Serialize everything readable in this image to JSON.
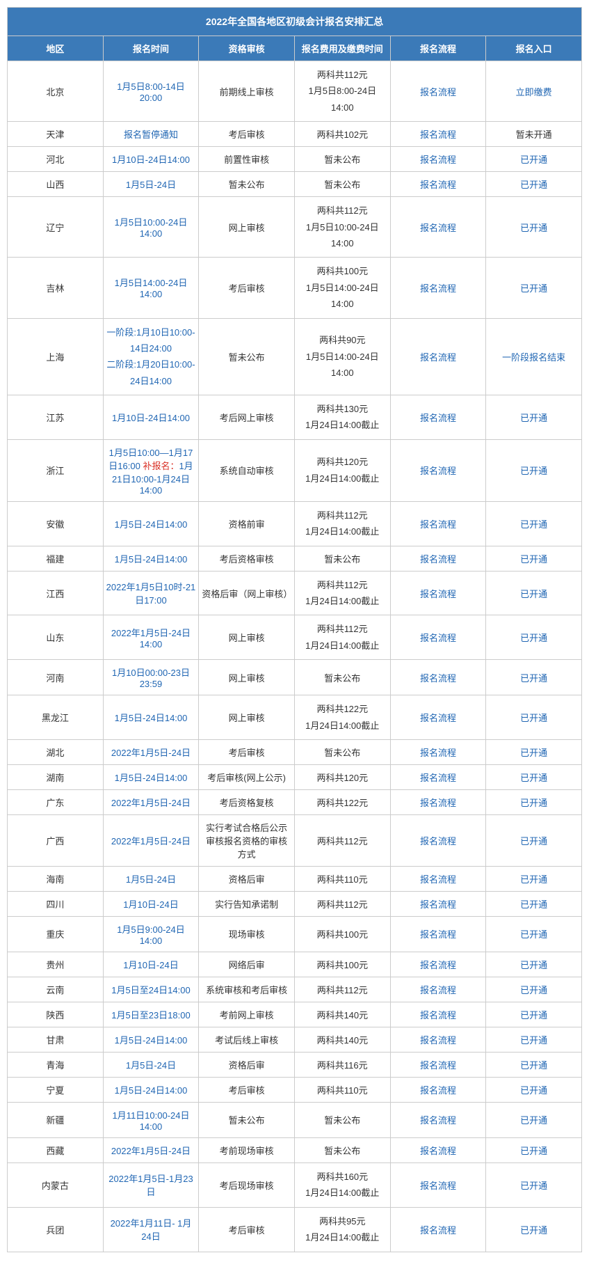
{
  "table": {
    "title": "2022年全国各地区初级会计报名安排汇总",
    "columns": [
      "地区",
      "报名时间",
      "资格审核",
      "报名费用及缴费时间",
      "报名流程",
      "报名入口"
    ],
    "process_label": "报名流程",
    "colors": {
      "header_bg": "#3b7ab8",
      "header_text": "#ffffff",
      "link": "#2066b3",
      "normal": "#333333",
      "red": "#d93025",
      "border": "#cccccc"
    },
    "rows": [
      {
        "region": "北京",
        "time": "1月5日8:00-14日20:00",
        "time_link": true,
        "audit": "前期线上审核",
        "fee_l1": "两科共112元",
        "fee_l2": "1月5日8:00-24日14:00",
        "entrance": "立即缴费",
        "entrance_link": true
      },
      {
        "region": "天津",
        "time": "报名暂停通知",
        "time_link": true,
        "audit": "考后审核",
        "fee_l1": "两科共102元",
        "fee_l2": "",
        "entrance": "暂未开通",
        "entrance_link": false
      },
      {
        "region": "河北",
        "time": "1月10日-24日14:00",
        "time_link": true,
        "audit": "前置性审核",
        "fee_l1": "暂未公布",
        "fee_l2": "",
        "entrance": "已开通",
        "entrance_link": true
      },
      {
        "region": "山西",
        "time": "1月5日-24日",
        "time_link": true,
        "audit": "暂未公布",
        "fee_l1": "暂未公布",
        "fee_l2": "",
        "entrance": "已开通",
        "entrance_link": true
      },
      {
        "region": "辽宁",
        "time": "1月5日10:00-24日14:00",
        "time_link": true,
        "audit": "网上审核",
        "fee_l1": "两科共112元",
        "fee_l2": "1月5日10:00-24日14:00",
        "entrance": "已开通",
        "entrance_link": true
      },
      {
        "region": "吉林",
        "time": "1月5日14:00-24日14:00",
        "time_link": true,
        "audit": "考后审核",
        "fee_l1": "两科共100元",
        "fee_l2": "1月5日14:00-24日14:00",
        "entrance": "已开通",
        "entrance_link": true
      },
      {
        "region": "上海",
        "time_prefix1": "一阶段:1月10日10:00-14日24:00",
        "time_prefix2": "二阶段:1月20日10:00-24日14:00",
        "time_link": true,
        "audit": "暂未公布",
        "fee_l1": "两科共90元",
        "fee_l2": "1月5日14:00-24日14:00",
        "entrance": "一阶段报名结束",
        "entrance_link": true,
        "multiline_time": true
      },
      {
        "region": "江苏",
        "time": "1月10日-24日14:00",
        "time_link": true,
        "audit": "考后网上审核",
        "fee_l1": "两科共130元",
        "fee_l2": "1月24日14:00截止",
        "entrance": "已开通",
        "entrance_link": true
      },
      {
        "region": "浙江",
        "time_prefix1": "1月5日10:00—1月17日16:00 ",
        "time_red": "补报名：",
        "time_suffix": "1月21日10:00-1月24日 14:00",
        "time_link": true,
        "audit": "系统自动审核",
        "fee_l1": "两科共120元",
        "fee_l2": "1月24日14:00截止",
        "entrance": "已开通",
        "entrance_link": true,
        "zhejiang_special": true
      },
      {
        "region": "安徽",
        "time": "1月5日-24日14:00",
        "time_link": true,
        "audit": "资格前审",
        "fee_l1": "两科共112元",
        "fee_l2": "1月24日14:00截止",
        "entrance": "已开通",
        "entrance_link": true
      },
      {
        "region": "福建",
        "time": "1月5日-24日14:00",
        "time_link": true,
        "audit": "考后资格审核",
        "fee_l1": "暂未公布",
        "fee_l2": "",
        "entrance": "已开通",
        "entrance_link": true
      },
      {
        "region": "江西",
        "time": "2022年1月5日10时-21日17:00",
        "time_link": true,
        "audit": "资格后审（网上审核）",
        "fee_l1": "两科共112元",
        "fee_l2": "1月24日14:00截止",
        "entrance": "已开通",
        "entrance_link": true
      },
      {
        "region": "山东",
        "time": "2022年1月5日-24日14:00",
        "time_link": true,
        "audit": "网上审核",
        "fee_l1": "两科共112元",
        "fee_l2": "1月24日14:00截止",
        "entrance": "已开通",
        "entrance_link": true
      },
      {
        "region": "河南",
        "time": "1月10日00:00-23日23:59",
        "time_link": true,
        "audit": "网上审核",
        "fee_l1": "暂未公布",
        "fee_l2": "",
        "entrance": "已开通",
        "entrance_link": true
      },
      {
        "region": "黑龙江",
        "time": "1月5日-24日14:00",
        "time_link": true,
        "audit": "网上审核",
        "fee_l1": "两科共122元",
        "fee_l2": "1月24日14:00截止",
        "entrance": "已开通",
        "entrance_link": true
      },
      {
        "region": "湖北",
        "time": "2022年1月5日-24日",
        "time_link": true,
        "audit": "考后审核",
        "fee_l1": "暂未公布",
        "fee_l2": "",
        "entrance": "已开通",
        "entrance_link": true
      },
      {
        "region": "湖南",
        "time": "1月5日-24日14:00",
        "time_link": true,
        "audit": "考后审核(网上公示)",
        "fee_l1": "两科共120元",
        "fee_l2": "",
        "entrance": "已开通",
        "entrance_link": true
      },
      {
        "region": "广东",
        "time": "2022年1月5日-24日",
        "time_link": true,
        "audit": "考后资格复核",
        "fee_l1": "两科共122元",
        "fee_l2": "",
        "entrance": "已开通",
        "entrance_link": true
      },
      {
        "region": "广西",
        "time": "2022年1月5日-24日",
        "time_link": true,
        "audit": "实行考试合格后公示审核报名资格的审核方式",
        "fee_l1": "两科共112元",
        "fee_l2": "",
        "entrance": "已开通",
        "entrance_link": true
      },
      {
        "region": "海南",
        "time": "1月5日-24日",
        "time_link": true,
        "audit": "资格后审",
        "fee_l1": "两科共110元",
        "fee_l2": "",
        "entrance": "已开通",
        "entrance_link": true
      },
      {
        "region": "四川",
        "time": "1月10日-24日",
        "time_link": true,
        "audit": "实行告知承诺制",
        "fee_l1": "两科共112元",
        "fee_l2": "",
        "entrance": "已开通",
        "entrance_link": true
      },
      {
        "region": "重庆",
        "time": "1月5日9:00-24日14:00",
        "time_link": true,
        "audit": "现场审核",
        "fee_l1": "两科共100元",
        "fee_l2": "",
        "entrance": "已开通",
        "entrance_link": true
      },
      {
        "region": "贵州",
        "time": "1月10日-24日",
        "time_link": true,
        "audit": "网络后审",
        "fee_l1": "两科共100元",
        "fee_l2": "",
        "entrance": "已开通",
        "entrance_link": true
      },
      {
        "region": "云南",
        "time": "1月5日至24日14:00",
        "time_link": true,
        "audit": "系统审核和考后审核",
        "fee_l1": "两科共112元",
        "fee_l2": "",
        "entrance": "已开通",
        "entrance_link": true
      },
      {
        "region": "陕西",
        "time": "1月5日至23日18:00",
        "time_link": true,
        "audit": "考前网上审核",
        "fee_l1": "两科共140元",
        "fee_l2": "",
        "entrance": "已开通",
        "entrance_link": true
      },
      {
        "region": "甘肃",
        "time": "1月5日-24日14:00",
        "time_link": true,
        "audit": "考试后线上审核",
        "fee_l1": "两科共140元",
        "fee_l2": "",
        "entrance": "已开通",
        "entrance_link": true
      },
      {
        "region": "青海",
        "time": "1月5日-24日",
        "time_link": true,
        "audit": "资格后审",
        "fee_l1": "两科共116元",
        "fee_l2": "",
        "entrance": "已开通",
        "entrance_link": true
      },
      {
        "region": "宁夏",
        "time": "1月5日-24日14:00",
        "time_link": true,
        "audit": "考后审核",
        "fee_l1": "两科共110元",
        "fee_l2": "",
        "entrance": "已开通",
        "entrance_link": true
      },
      {
        "region": "新疆",
        "time": "1月11日10:00-24日14:00",
        "time_link": true,
        "audit": "暂未公布",
        "fee_l1": "暂未公布",
        "fee_l2": "",
        "entrance": "已开通",
        "entrance_link": true
      },
      {
        "region": "西藏",
        "time": "2022年1月5日-24日",
        "time_link": true,
        "audit": "考前现场审核",
        "fee_l1": "暂未公布",
        "fee_l2": "",
        "entrance": "已开通",
        "entrance_link": true
      },
      {
        "region": "内蒙古",
        "time": "2022年1月5日-1月23日",
        "time_link": true,
        "audit": "考后现场审核",
        "fee_l1": "两科共160元",
        "fee_l2": "1月24日14:00截止",
        "entrance": "已开通",
        "entrance_link": true
      },
      {
        "region": "兵团",
        "time": "2022年1月11日- 1月24日",
        "time_link": true,
        "audit": "考后审核",
        "fee_l1": "两科共95元",
        "fee_l2": "1月24日14:00截止",
        "entrance": "已开通",
        "entrance_link": true
      }
    ]
  }
}
